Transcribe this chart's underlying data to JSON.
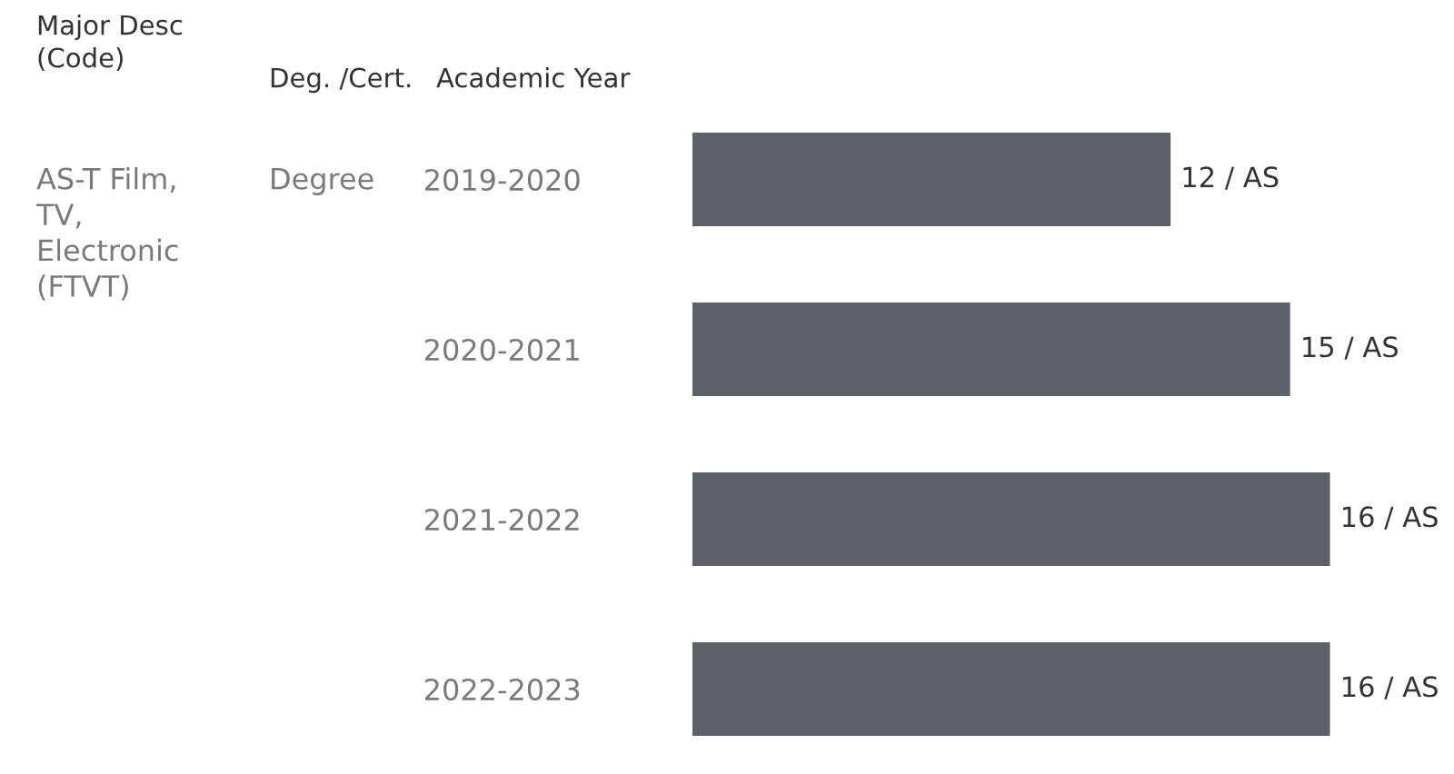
{
  "chart_data": {
    "type": "bar",
    "orientation": "horizontal",
    "categories": [
      "2019-2020",
      "2020-2021",
      "2021-2022",
      "2022-2023"
    ],
    "values": [
      12,
      15,
      16,
      16
    ],
    "color": "#5d6067",
    "value_labels": [
      "12 / AS",
      "15 / AS",
      "16 / AS",
      "16 / AS"
    ],
    "tick_labels": "y",
    "annotations": [
      "Major Desc\n(Code)",
      "Deg. /Cert.",
      "Academic Year",
      "AS-T Film,\nTV,\nElectronic\n(FTVT)",
      "Degree"
    ]
  }
}
